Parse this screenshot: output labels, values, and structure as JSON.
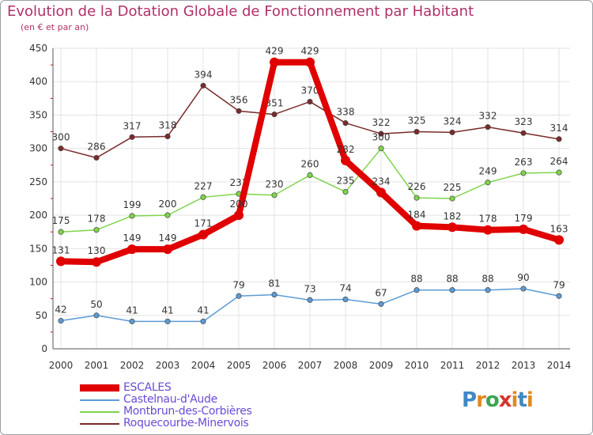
{
  "title": "Evolution de la Dotation Globale de Fonctionnement par Habitant",
  "subtitle": "(en € et par an)",
  "logo": "Proxiti",
  "chart_data": {
    "type": "line",
    "title": "Evolution de la Dotation Globale de Fonctionnement par Habitant",
    "subtitle": "(en € et par an)",
    "xlabel": "",
    "ylabel": "",
    "ylim": [
      0,
      450
    ],
    "yticks": [
      0,
      50,
      100,
      150,
      200,
      250,
      300,
      350,
      400,
      450
    ],
    "grid": true,
    "legend_position": "bottom-left",
    "categories": [
      "2000",
      "2001",
      "2002",
      "2003",
      "2004",
      "2005",
      "2006",
      "2007",
      "2008",
      "2009",
      "2010",
      "2011",
      "2012",
      "2013",
      "2014"
    ],
    "series": [
      {
        "name": "Roquecourbe-Minervois",
        "color": "#7a2a2a",
        "values": [
          300,
          286,
          317,
          318,
          394,
          356,
          351,
          370,
          338,
          322,
          325,
          324,
          332,
          323,
          314
        ]
      },
      {
        "name": "Montbrun-des-Corbières",
        "color": "#7fd44a",
        "values": [
          175,
          178,
          199,
          200,
          227,
          232,
          230,
          260,
          235,
          300,
          226,
          225,
          249,
          263,
          264
        ]
      },
      {
        "name": "Castelnau-d'Aude",
        "color": "#5b9bd5",
        "values": [
          42,
          50,
          41,
          41,
          41,
          79,
          81,
          73,
          74,
          67,
          88,
          88,
          88,
          90,
          79
        ]
      },
      {
        "name": "ESCALES",
        "color": "#e00000",
        "values": [
          131,
          130,
          149,
          149,
          171,
          200,
          429,
          429,
          282,
          234,
          184,
          182,
          178,
          179,
          163
        ]
      }
    ]
  }
}
